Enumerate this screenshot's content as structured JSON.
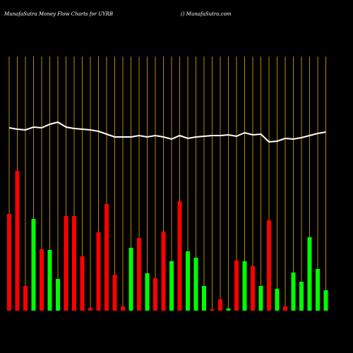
{
  "chart_data": {
    "type": "bar",
    "title": "MunafaSutra  Money Flow  Charts for UYRB",
    "subtitle": "() MunafaSutra.com",
    "categories": [
      null,
      null,
      null,
      null,
      null,
      null,
      null,
      null,
      null,
      null,
      null,
      null,
      null,
      null,
      null,
      null,
      null,
      null,
      null,
      null,
      null,
      null,
      null,
      null,
      null,
      null,
      null,
      null,
      null,
      null,
      null,
      null,
      null,
      null,
      null,
      null,
      null,
      null,
      null,
      null
    ],
    "values": [
      137,
      198,
      35,
      130,
      87,
      86,
      45,
      134,
      134,
      77,
      4,
      111,
      151,
      51,
      6,
      89,
      103,
      53,
      46,
      112,
      70,
      155,
      84,
      75,
      35,
      2,
      16,
      3,
      71,
      70,
      63,
      35,
      128,
      31,
      6,
      54,
      41,
      104,
      59,
      29
    ],
    "bar_colors": [
      "#ff0000",
      "#ff0000",
      "#ff0000",
      "#00ff00",
      "#ff0000",
      "#00ff00",
      "#00ff00",
      "#ff0000",
      "#ff0000",
      "#ff0000",
      "#ff0000",
      "#ff0000",
      "#ff0000",
      "#ff0000",
      "#ff0000",
      "#00ff00",
      "#ff0000",
      "#00ff00",
      "#ff0000",
      "#ff0000",
      "#00ff00",
      "#ff0000",
      "#00ff00",
      "#00ff00",
      "#00ff00",
      "#ff0000",
      "#ff0000",
      "#00ff00",
      "#ff0000",
      "#00ff00",
      "#ff0000",
      "#00ff00",
      "#ff0000",
      "#00ff00",
      "#ff0000",
      "#00ff00",
      "#00ff00",
      "#00ff00",
      "#00ff00",
      "#00ff00"
    ],
    "line": {
      "color": "#ffffff",
      "values": [
        259,
        257,
        256,
        260,
        259,
        264,
        267,
        260,
        258,
        257,
        256,
        254,
        250,
        246,
        246,
        246,
        248,
        246,
        248,
        246,
        243,
        248,
        244,
        246,
        247,
        248,
        248,
        249,
        247,
        252,
        249,
        250,
        239,
        240,
        244,
        243,
        245,
        248,
        251,
        253
      ]
    },
    "ylim": [
      0,
      360
    ],
    "grid": true,
    "grid_color": "#b8860b"
  }
}
